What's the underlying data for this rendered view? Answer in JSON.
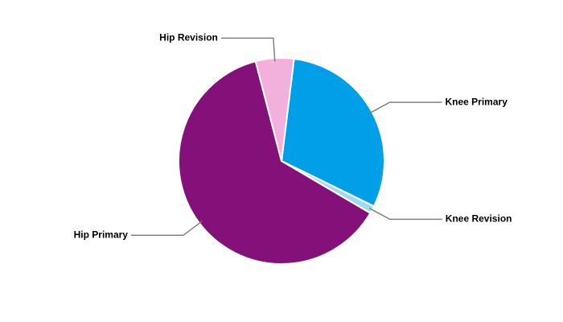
{
  "chart_data": {
    "type": "pie",
    "categories": [
      "Knee Primary",
      "Knee Revision",
      "Hip Primary",
      "Hip Revision"
    ],
    "values": [
      30.3,
      1.2,
      62.5,
      6.0
    ],
    "colors": [
      "#009fe8",
      "#9fd9f6",
      "#84117a",
      "#f2b0dc"
    ]
  }
}
